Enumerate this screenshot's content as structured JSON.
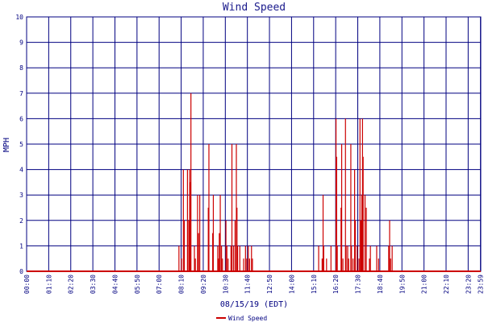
{
  "chart_data": {
    "type": "bar",
    "title": "Wind Speed",
    "xlabel": "08/15/19 (EDT)",
    "ylabel": "MPH",
    "ylim": [
      0,
      10
    ],
    "y_ticks": [
      "0",
      "1",
      "2",
      "3",
      "4",
      "5",
      "6",
      "7",
      "8",
      "9",
      "10"
    ],
    "x_tick_labels": [
      "00:00",
      "01:10",
      "02:20",
      "03:30",
      "04:40",
      "05:50",
      "07:00",
      "08:10",
      "09:20",
      "10:30",
      "11:40",
      "12:50",
      "14:00",
      "15:10",
      "16:20",
      "17:30",
      "18:40",
      "19:50",
      "21:00",
      "22:10",
      "23:20",
      "23:59"
    ],
    "x_range_minutes": [
      0,
      1440
    ],
    "grid": true,
    "legend_position": "bottom",
    "colors": {
      "series": "#cc0000",
      "grid": "#000080",
      "axes": "#000080"
    },
    "series": [
      {
        "name": "Wind Speed",
        "points": [
          [
            483,
            1
          ],
          [
            491,
            0.5
          ],
          [
            497,
            4
          ],
          [
            500,
            2
          ],
          [
            510,
            4
          ],
          [
            514,
            2
          ],
          [
            517,
            4
          ],
          [
            519,
            3.5
          ],
          [
            521,
            7
          ],
          [
            532,
            1
          ],
          [
            535,
            0.5
          ],
          [
            542,
            3
          ],
          [
            545,
            1.5
          ],
          [
            549,
            3
          ],
          [
            576,
            2.5
          ],
          [
            578,
            5
          ],
          [
            590,
            1.5
          ],
          [
            592,
            3
          ],
          [
            606,
            1
          ],
          [
            608,
            0.5
          ],
          [
            611,
            1.5
          ],
          [
            614,
            3
          ],
          [
            618,
            1
          ],
          [
            621,
            0.5
          ],
          [
            632,
            2
          ],
          [
            635,
            1
          ],
          [
            639,
            0.5
          ],
          [
            648,
            1
          ],
          [
            651,
            5
          ],
          [
            656,
            1
          ],
          [
            661,
            2
          ],
          [
            665,
            5
          ],
          [
            667,
            2.5
          ],
          [
            669,
            1
          ],
          [
            676,
            1
          ],
          [
            688,
            0.5
          ],
          [
            694,
            1
          ],
          [
            698,
            0.5
          ],
          [
            703,
            1
          ],
          [
            707,
            0.5
          ],
          [
            713,
            1
          ],
          [
            716,
            0.5
          ],
          [
            926,
            1
          ],
          [
            937,
            0.5
          ],
          [
            940,
            3
          ],
          [
            942,
            1
          ],
          [
            951,
            0.5
          ],
          [
            965,
            1
          ],
          [
            981,
            6
          ],
          [
            983,
            4.5
          ],
          [
            985,
            1
          ],
          [
            997,
            2.5
          ],
          [
            999,
            5
          ],
          [
            1003,
            0.5
          ],
          [
            1011,
            6
          ],
          [
            1013,
            1
          ],
          [
            1018,
            1
          ],
          [
            1021,
            0.5
          ],
          [
            1028,
            5
          ],
          [
            1030,
            1
          ],
          [
            1035,
            0.5
          ],
          [
            1040,
            4
          ],
          [
            1042,
            2
          ],
          [
            1048,
            1
          ],
          [
            1054,
            0.5
          ],
          [
            1057,
            6
          ],
          [
            1060,
            2
          ],
          [
            1063,
            3
          ],
          [
            1065,
            6
          ],
          [
            1067,
            4.5
          ],
          [
            1073,
            3
          ],
          [
            1077,
            2.5
          ],
          [
            1087,
            0.5
          ],
          [
            1090,
            1
          ],
          [
            1110,
            1
          ],
          [
            1116,
            0.5
          ],
          [
            1148,
            1
          ],
          [
            1151,
            2
          ],
          [
            1154,
            0.5
          ],
          [
            1159,
            1
          ]
        ]
      }
    ]
  }
}
